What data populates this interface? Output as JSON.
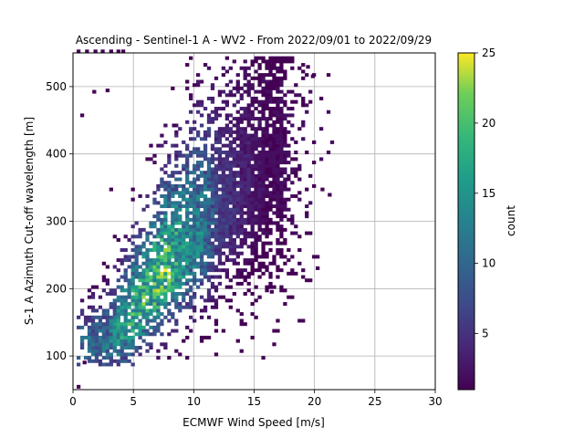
{
  "chart_data": {
    "type": "heatmap",
    "title": "Ascending - Sentinel-1 A - WV2 - From 2022/09/01 to 2022/09/29",
    "xlabel": "ECMWF Wind Speed [m/s]",
    "ylabel": "S-1 A Azimuth Cut-off wavelength [m]",
    "xlim": [
      0,
      30
    ],
    "ylim": [
      50,
      550
    ],
    "x_ticks": [
      "0",
      "5",
      "10",
      "15",
      "20",
      "25",
      "30"
    ],
    "y_ticks": [
      "100",
      "200",
      "300",
      "400",
      "500"
    ],
    "x_tick_values": [
      0,
      5,
      10,
      15,
      20,
      25,
      30
    ],
    "y_tick_values": [
      100,
      200,
      300,
      400,
      500
    ],
    "grid": true,
    "colormap": "viridis",
    "colorbar": {
      "label": "count",
      "range": [
        1,
        25
      ],
      "ticks": [
        "5",
        "10",
        "15",
        "20",
        "25"
      ],
      "tick_values": [
        5,
        10,
        15,
        20,
        25
      ]
    },
    "bin_size": {
      "x_ms": 0.3,
      "y_m": 5
    },
    "density_ridge": [
      {
        "x": 2.5,
        "y": 115,
        "count": 12
      },
      {
        "x": 4.0,
        "y": 140,
        "count": 18
      },
      {
        "x": 5.0,
        "y": 160,
        "count": 20
      },
      {
        "x": 6.0,
        "y": 185,
        "count": 21
      },
      {
        "x": 7.5,
        "y": 220,
        "count": 22
      },
      {
        "x": 9.0,
        "y": 250,
        "count": 17
      },
      {
        "x": 10.5,
        "y": 275,
        "count": 14
      },
      {
        "x": 12.0,
        "y": 300,
        "count": 7
      },
      {
        "x": 14.0,
        "y": 330,
        "count": 4
      },
      {
        "x": 16.0,
        "y": 360,
        "count": 2
      }
    ],
    "outliers": [
      {
        "x": 0.3,
        "y": 550
      },
      {
        "x": 1.0,
        "y": 550
      },
      {
        "x": 1.7,
        "y": 550
      },
      {
        "x": 2.3,
        "y": 550
      },
      {
        "x": 3.0,
        "y": 550
      },
      {
        "x": 3.6,
        "y": 550
      },
      {
        "x": 4.0,
        "y": 550
      },
      {
        "x": 1.6,
        "y": 490
      },
      {
        "x": 2.7,
        "y": 492
      },
      {
        "x": 0.6,
        "y": 455
      },
      {
        "x": 8.2,
        "y": 440
      },
      {
        "x": 19.3,
        "y": 527
      },
      {
        "x": 19.7,
        "y": 513
      },
      {
        "x": 17.3,
        "y": 430
      },
      {
        "x": 20.5,
        "y": 345
      },
      {
        "x": 21.1,
        "y": 337
      },
      {
        "x": 20.1,
        "y": 228
      },
      {
        "x": 16.3,
        "y": 193
      },
      {
        "x": 0.3,
        "y": 52
      },
      {
        "x": 0.8,
        "y": 88
      }
    ]
  }
}
